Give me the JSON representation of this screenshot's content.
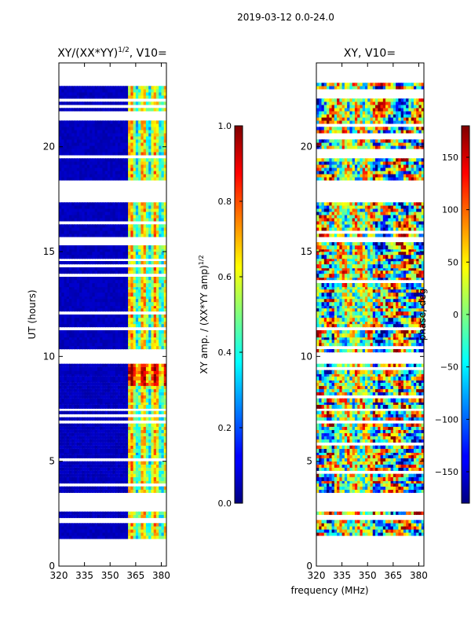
{
  "suptitle": "2019-03-12 0.0-24.0",
  "shared_xlabel": "frequency (MHz)",
  "chart_data": [
    {
      "type": "heatmap",
      "title": "XY/(XX*YY)",
      "title_exp": "1/2",
      "title_tail": ", V10=",
      "xlabel": "",
      "ylabel": "UT (hours)",
      "xlim": [
        320,
        383
      ],
      "ylim": [
        0,
        24
      ],
      "xticks": [
        "320",
        "335",
        "350",
        "365",
        "380"
      ],
      "xtick_values": [
        320,
        335,
        350,
        365,
        380
      ],
      "yticks": [
        "0",
        "5",
        "10",
        "15",
        "20"
      ],
      "ytick_values": [
        0,
        5,
        10,
        15,
        20
      ],
      "colorbar": {
        "label": "XY amp. / (XX*YY amp)",
        "label_exp": "1/2",
        "range": [
          0.0,
          1.0
        ],
        "ticks": [
          "0.0",
          "0.2",
          "0.4",
          "0.6",
          "0.8",
          "1.0"
        ],
        "tick_values": [
          0.0,
          0.2,
          0.4,
          0.6,
          0.8,
          1.0
        ]
      },
      "colormap": "jet",
      "data_description": "Mostly low amplitude (~0.05) across 320-359 MHz; 360-383 MHz shows values ~0.3-0.8 in vertical bands.",
      "observed_ut_bands": [
        [
          1.3,
          2.1
        ],
        [
          2.3,
          2.5
        ],
        [
          3.5,
          9.6
        ],
        [
          10.2,
          15.4
        ],
        [
          15.7,
          17.3
        ],
        [
          18.4,
          23.0
        ]
      ]
    },
    {
      "type": "heatmap",
      "title": "XY, V10=",
      "xlabel": "",
      "ylabel": "",
      "xlim": [
        320,
        383
      ],
      "ylim": [
        0,
        24
      ],
      "xticks": [
        "320",
        "335",
        "350",
        "365",
        "380"
      ],
      "xtick_values": [
        320,
        335,
        350,
        365,
        380
      ],
      "yticks": [
        "0",
        "5",
        "10",
        "15",
        "20"
      ],
      "ytick_values": [
        0,
        5,
        10,
        15,
        20
      ],
      "colorbar": {
        "label": "phase, deg",
        "range": [
          -180,
          180
        ],
        "ticks": [
          "−150",
          "−100",
          "−50",
          "0",
          "50",
          "100",
          "150"
        ],
        "tick_values": [
          -150,
          -100,
          -50,
          0,
          50,
          100,
          150
        ]
      },
      "colormap": "jet",
      "data_description": "Phase in degrees spanning -180 to 180, noisy across frequency with structured bands near 335-350 MHz.",
      "observed_ut_bands": [
        [
          1.3,
          2.1
        ],
        [
          2.3,
          2.5
        ],
        [
          3.5,
          9.6
        ],
        [
          10.2,
          15.4
        ],
        [
          15.7,
          17.3
        ],
        [
          18.4,
          23.0
        ]
      ]
    }
  ]
}
